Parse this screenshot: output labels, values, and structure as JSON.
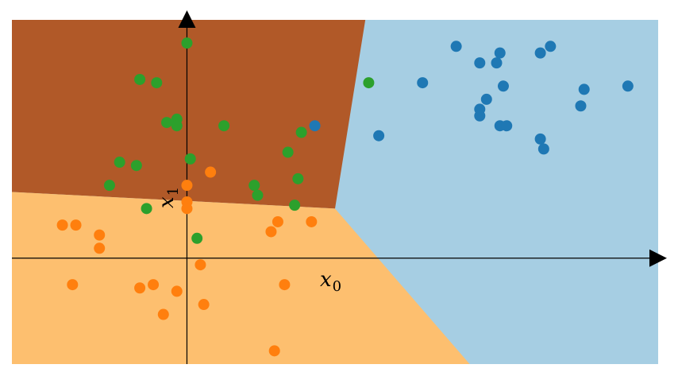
{
  "chart_data": {
    "type": "scatter",
    "title": "",
    "xlabel": "x",
    "xlabel_sub": "0",
    "ylabel": "x",
    "ylabel_sub": "1",
    "grid": false,
    "legend": "none",
    "xlim": [
      -2.6,
      7.0
    ],
    "ylim": [
      -1.6,
      3.6
    ],
    "region_colors": {
      "class_0": "#a6cee3",
      "class_1": "#fdbf6f",
      "class_2": "#b15928"
    },
    "regions": {
      "boundary_junction": [
        2.2,
        0.75
      ],
      "boundary_0_2_top": [
        2.65,
        3.6
      ],
      "boundary_1_2_left": [
        -2.6,
        1.0
      ],
      "boundary_0_1_bottom": [
        4.2,
        -1.6
      ]
    },
    "series": [
      {
        "class": 0,
        "color": "#1f78b4",
        "points": [
          [
            4.0,
            3.2
          ],
          [
            4.35,
            2.95
          ],
          [
            4.6,
            2.95
          ],
          [
            4.65,
            3.1
          ],
          [
            5.25,
            3.1
          ],
          [
            5.4,
            3.2
          ],
          [
            3.5,
            2.65
          ],
          [
            4.7,
            2.6
          ],
          [
            4.45,
            2.4
          ],
          [
            4.35,
            2.25
          ],
          [
            4.35,
            2.15
          ],
          [
            4.65,
            2.0
          ],
          [
            4.75,
            2.0
          ],
          [
            5.9,
            2.55
          ],
          [
            5.85,
            2.3
          ],
          [
            6.55,
            2.6
          ],
          [
            5.25,
            1.8
          ],
          [
            5.3,
            1.65
          ],
          [
            2.85,
            1.85
          ],
          [
            1.9,
            2.0
          ]
        ]
      },
      {
        "class": 1,
        "color": "#ff7f0e",
        "points": [
          [
            0.35,
            1.3
          ],
          [
            0.0,
            1.1
          ],
          [
            0.0,
            0.85
          ],
          [
            0.0,
            0.75
          ],
          [
            -1.85,
            0.5
          ],
          [
            -1.65,
            0.5
          ],
          [
            -1.3,
            0.35
          ],
          [
            -1.3,
            0.15
          ],
          [
            1.35,
            0.55
          ],
          [
            1.25,
            0.4
          ],
          [
            1.85,
            0.55
          ],
          [
            0.2,
            -0.1
          ],
          [
            -1.7,
            -0.4
          ],
          [
            -0.7,
            -0.45
          ],
          [
            -0.5,
            -0.4
          ],
          [
            -0.15,
            -0.5
          ],
          [
            1.45,
            -0.4
          ],
          [
            0.25,
            -0.7
          ],
          [
            -0.35,
            -0.85
          ],
          [
            1.3,
            -1.4
          ]
        ]
      },
      {
        "class": 2,
        "color": "#2ca02c",
        "points": [
          [
            0.0,
            3.25
          ],
          [
            -0.7,
            2.7
          ],
          [
            -0.45,
            2.65
          ],
          [
            -0.3,
            2.05
          ],
          [
            -0.15,
            2.1
          ],
          [
            -0.15,
            2.0
          ],
          [
            0.55,
            2.0
          ],
          [
            1.7,
            1.9
          ],
          [
            2.7,
            2.65
          ],
          [
            1.5,
            1.6
          ],
          [
            -1.0,
            1.45
          ],
          [
            -0.75,
            1.4
          ],
          [
            0.05,
            1.5
          ],
          [
            -1.15,
            1.1
          ],
          [
            1.0,
            1.1
          ],
          [
            1.65,
            1.2
          ],
          [
            1.05,
            0.95
          ],
          [
            1.6,
            0.8
          ],
          [
            -0.6,
            0.75
          ],
          [
            0.15,
            0.3
          ]
        ]
      }
    ]
  }
}
